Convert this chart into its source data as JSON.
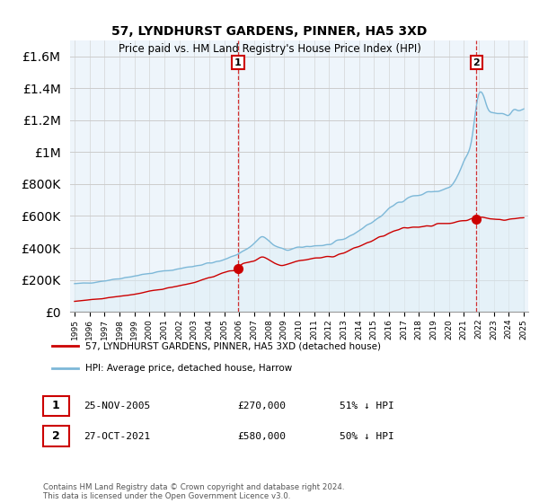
{
  "title": "57, LYNDHURST GARDENS, PINNER, HA5 3XD",
  "subtitle": "Price paid vs. HM Land Registry's House Price Index (HPI)",
  "ylim": [
    0,
    1700000
  ],
  "yticks": [
    0,
    200000,
    400000,
    600000,
    800000,
    1000000,
    1200000,
    1400000,
    1600000
  ],
  "hpi_color": "#7db8d8",
  "hpi_fill_color": "#ddeef7",
  "sold_color": "#cc0000",
  "vline_color": "#cc0000",
  "grid_color": "#cccccc",
  "bg_color": "#eef5fb",
  "sale1_date": 2005.92,
  "sale1_price": 270000,
  "sale2_date": 2021.83,
  "sale2_price": 580000,
  "legend_label_sold": "57, LYNDHURST GARDENS, PINNER, HA5 3XD (detached house)",
  "legend_label_hpi": "HPI: Average price, detached house, Harrow",
  "footer": "Contains HM Land Registry data © Crown copyright and database right 2024.\nThis data is licensed under the Open Government Licence v3.0.",
  "xlim_left": 1994.7,
  "xlim_right": 2025.3
}
